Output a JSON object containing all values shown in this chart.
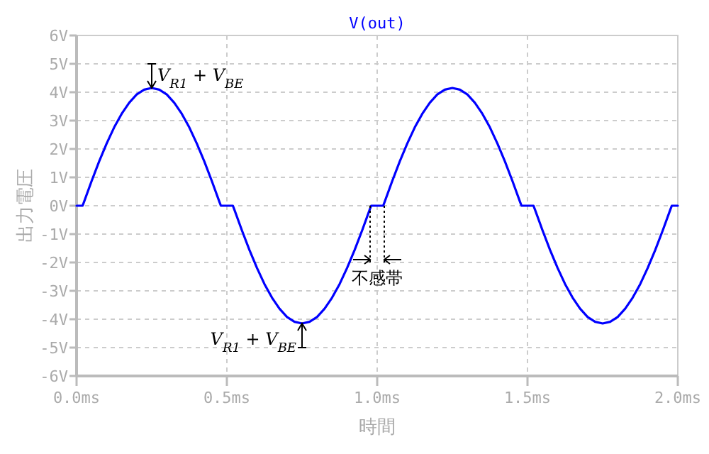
{
  "chart_data": {
    "type": "line",
    "title": "V(out)",
    "xlabel": "時間",
    "ylabel": "出力電圧",
    "xlim": [
      0,
      2
    ],
    "ylim": [
      -6,
      6
    ],
    "xticks": [
      {
        "value": 0,
        "label": "0.0ms"
      },
      {
        "value": 0.5,
        "label": "0.5ms"
      },
      {
        "value": 1,
        "label": "1.0ms"
      },
      {
        "value": 1.5,
        "label": "1.5ms"
      },
      {
        "value": 2,
        "label": "2.0ms"
      }
    ],
    "yticks": [
      {
        "value": 6,
        "label": "6V"
      },
      {
        "value": 5,
        "label": "5V"
      },
      {
        "value": 4,
        "label": "4V"
      },
      {
        "value": 3,
        "label": "3V"
      },
      {
        "value": 2,
        "label": "2V"
      },
      {
        "value": 1,
        "label": "1V"
      },
      {
        "value": 0,
        "label": "0V"
      },
      {
        "value": -1,
        "label": "-1V"
      },
      {
        "value": -2,
        "label": "-2V"
      },
      {
        "value": -3,
        "label": "-3V"
      },
      {
        "value": -4,
        "label": "-4V"
      },
      {
        "value": -5,
        "label": "-5V"
      },
      {
        "value": -6,
        "label": "-6V"
      }
    ],
    "grid": true,
    "line_style": "solid",
    "marker": "none",
    "series": [
      {
        "color": "#0000ff",
        "x": [
          0,
          0.02,
          0.025,
          0.05,
          0.075,
          0.1,
          0.125,
          0.15,
          0.175,
          0.2,
          0.225,
          0.25,
          0.275,
          0.3,
          0.325,
          0.35,
          0.375,
          0.4,
          0.425,
          0.45,
          0.475,
          0.48,
          0.52,
          0.525,
          0.55,
          0.575,
          0.6,
          0.625,
          0.65,
          0.675,
          0.7,
          0.725,
          0.75,
          0.775,
          0.8,
          0.825,
          0.85,
          0.875,
          0.9,
          0.925,
          0.95,
          0.975,
          0.98,
          1.02,
          1.025,
          1.05,
          1.075,
          1.1,
          1.125,
          1.15,
          1.175,
          1.2,
          1.225,
          1.25,
          1.275,
          1.3,
          1.325,
          1.35,
          1.375,
          1.4,
          1.425,
          1.45,
          1.475,
          1.48,
          1.52,
          1.525,
          1.55,
          1.575,
          1.6,
          1.625,
          1.65,
          1.675,
          1.7,
          1.725,
          1.75,
          1.775,
          1.8,
          1.825,
          1.85,
          1.875,
          1.9,
          1.925,
          1.95,
          1.975,
          1.98,
          2.0
        ],
        "values": [
          0,
          0,
          0.14,
          0.87,
          1.56,
          2.19,
          2.76,
          3.24,
          3.63,
          3.92,
          4.09,
          4.15,
          4.09,
          3.92,
          3.63,
          3.24,
          2.76,
          2.19,
          1.56,
          0.87,
          0.14,
          0,
          0,
          -0.14,
          -0.87,
          -1.56,
          -2.19,
          -2.76,
          -3.24,
          -3.63,
          -3.92,
          -4.09,
          -4.15,
          -4.09,
          -3.92,
          -3.63,
          -3.24,
          -2.76,
          -2.19,
          -1.56,
          -0.87,
          -0.14,
          0,
          0,
          0.14,
          0.87,
          1.56,
          2.19,
          2.76,
          3.24,
          3.63,
          3.92,
          4.09,
          4.15,
          4.09,
          3.92,
          3.63,
          3.24,
          2.76,
          2.19,
          1.56,
          0.87,
          0.14,
          0,
          0,
          -0.14,
          -0.87,
          -1.56,
          -2.19,
          -2.76,
          -3.24,
          -3.63,
          -3.92,
          -4.09,
          -4.15,
          -4.09,
          -3.92,
          -3.63,
          -3.24,
          -2.76,
          -2.19,
          -1.56,
          -0.87,
          -0.14,
          0,
          0
        ]
      }
    ],
    "annotations": [
      {
        "text": "V$_{R1}$ + V$_{BE}$",
        "x": 0.25,
        "y": 4.15
      },
      {
        "text": "V$_{R1}$ + V$_{BE}$",
        "x": 0.75,
        "y": -4.15
      },
      {
        "text": "不感帯",
        "x": 1.0,
        "y": 0
      }
    ]
  }
}
